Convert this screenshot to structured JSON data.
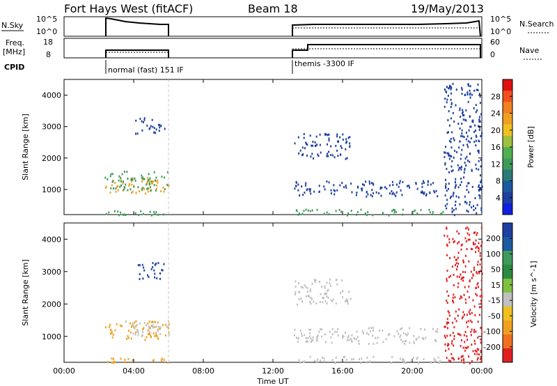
{
  "header": {
    "station": "Fort Hays West (fitACF)",
    "beam": "Beam 18",
    "date": "19/May/2013"
  },
  "top_strips": {
    "nsky_label": "N.Sky",
    "nsky_ticks": [
      "10^5",
      "10^0"
    ],
    "nsearch_label": "N.Search",
    "freq_label_1": "Freq.",
    "freq_label_2": "[MHz]",
    "freq_ticks": [
      "18",
      "8"
    ],
    "nave_ticks": [
      "60",
      "0"
    ],
    "nave_label": "Nave",
    "cpid_label": "CPID",
    "cpid_segments": [
      {
        "start_hour": 2.3,
        "label": "normal (fast) 151 IF"
      },
      {
        "start_hour": 13.1,
        "label": "themis -3300 IF"
      }
    ]
  },
  "colors": {
    "scatter_blue": "#1c3fa0",
    "scatter_green": "#3f9a5a",
    "scatter_orange": "#f0a020",
    "scatter_grey": "#c0c0c0",
    "scatter_red": "#e02020"
  },
  "chart_data": [
    {
      "type": "heatmap",
      "title": "Power",
      "xlabel": "",
      "ylabel": "Slant Range [km]",
      "xlim_hours": [
        0,
        24
      ],
      "ylim": [
        200,
        4500
      ],
      "y_ticks": [
        "4000",
        "3000",
        "2000",
        "1000"
      ],
      "colorbar_label": "Power [dB]",
      "colorbar_ticks": [
        "28",
        "24",
        "20",
        "16",
        "12",
        "8",
        "4"
      ],
      "colorbar_colors": [
        "#e01010",
        "#f05020",
        "#f08020",
        "#f0a020",
        "#f0c020",
        "#a0c040",
        "#50b050",
        "#3f9a5a",
        "#2a7a7a",
        "#1c5aa0",
        "#1c3fa0",
        "#1020e0"
      ],
      "regions": [
        {
          "t0": 2.3,
          "t1": 6.0,
          "r0": 900,
          "r1": 1400,
          "color": "#f0a020"
        },
        {
          "t0": 2.3,
          "t1": 6.0,
          "r0": 1000,
          "r1": 1600,
          "color": "#3f9a5a"
        },
        {
          "t0": 2.3,
          "t1": 6.0,
          "r0": 200,
          "r1": 350,
          "color": "#3f9a5a"
        },
        {
          "t0": 4.0,
          "t1": 5.8,
          "r0": 2800,
          "r1": 3300,
          "color": "#1c3fa0"
        },
        {
          "t0": 13.2,
          "t1": 21.8,
          "r0": 200,
          "r1": 400,
          "color": "#3f9a5a"
        },
        {
          "t0": 13.2,
          "t1": 16.5,
          "r0": 2000,
          "r1": 2800,
          "color": "#1c3fa0"
        },
        {
          "t0": 13.2,
          "t1": 21.5,
          "r0": 800,
          "r1": 1300,
          "color": "#1c3fa0"
        },
        {
          "t0": 21.8,
          "t1": 24.0,
          "r0": 200,
          "r1": 4400,
          "color": "#1c3fa0"
        }
      ]
    },
    {
      "type": "heatmap",
      "title": "Velocity",
      "xlabel": "Time UT",
      "ylabel": "Slant Range [km]",
      "xlim_hours": [
        0,
        24
      ],
      "ylim": [
        200,
        4500
      ],
      "x_ticks": [
        "00:00",
        "04:00",
        "08:00",
        "12:00",
        "16:00",
        "20:00",
        "00:00"
      ],
      "y_ticks": [
        "4000",
        "3000",
        "2000",
        "1000"
      ],
      "colorbar_label": "Velocity [m s^-1]",
      "colorbar_ticks": [
        "200",
        "100",
        "50",
        "15",
        "-15",
        "-50",
        "-100",
        "-200"
      ],
      "colorbar_colors": [
        "#1c3fa0",
        "#1c5aa0",
        "#3f9a5a",
        "#2a8a40",
        "#80c040",
        "#c0c0c0",
        "#f0c020",
        "#f0a020",
        "#f07020",
        "#e02020"
      ],
      "regions": [
        {
          "t0": 2.3,
          "t1": 6.0,
          "r0": 900,
          "r1": 1500,
          "color": "#f0a020"
        },
        {
          "t0": 3.5,
          "t1": 6.0,
          "r0": 1000,
          "r1": 1500,
          "color": "#c0c0c0"
        },
        {
          "t0": 2.3,
          "t1": 6.0,
          "r0": 200,
          "r1": 350,
          "color": "#f0a020"
        },
        {
          "t0": 4.0,
          "t1": 5.8,
          "r0": 2800,
          "r1": 3300,
          "color": "#1c3fa0"
        },
        {
          "t0": 13.2,
          "t1": 21.8,
          "r0": 200,
          "r1": 400,
          "color": "#c0c0c0"
        },
        {
          "t0": 13.2,
          "t1": 16.5,
          "r0": 2000,
          "r1": 2800,
          "color": "#c0c0c0"
        },
        {
          "t0": 13.2,
          "t1": 21.5,
          "r0": 800,
          "r1": 1300,
          "color": "#c0c0c0"
        },
        {
          "t0": 21.8,
          "t1": 24.0,
          "r0": 200,
          "r1": 4400,
          "color": "#e02020"
        }
      ]
    }
  ]
}
